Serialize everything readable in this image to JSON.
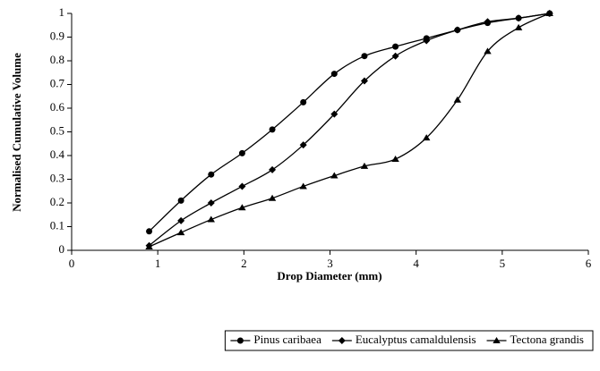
{
  "chart_data": {
    "type": "line",
    "x_label": "Drop Diameter (mm)",
    "y_label": "Normalised Cumulative Volume",
    "xlim": [
      0,
      6
    ],
    "xticks": [
      0,
      1,
      2,
      3,
      4,
      5,
      6
    ],
    "ylim": [
      0,
      1
    ],
    "yticks": [
      0,
      0.1,
      0.2,
      0.3,
      0.4,
      0.5,
      0.6,
      0.7,
      0.8,
      0.9,
      1
    ],
    "smooth": true,
    "legend": "bottom",
    "x": [
      0.9,
      1.27,
      1.62,
      1.98,
      2.33,
      2.69,
      3.05,
      3.4,
      3.76,
      4.12,
      4.48,
      4.83,
      5.19,
      5.55
    ],
    "series": [
      {
        "name": "Pinus caribaea",
        "color": "#000000",
        "marker": "circle",
        "values": [
          0.08,
          0.21,
          0.32,
          0.41,
          0.51,
          0.625,
          0.745,
          0.82,
          0.86,
          0.895,
          0.93,
          0.96,
          0.98,
          1.0
        ]
      },
      {
        "name": "Eucalyptus camaldulensis",
        "color": "#000000",
        "marker": "diamond",
        "values": [
          0.02,
          0.125,
          0.2,
          0.27,
          0.34,
          0.445,
          0.575,
          0.715,
          0.82,
          0.885,
          0.93,
          0.965,
          0.98,
          1.0
        ]
      },
      {
        "name": "Tectona grandis",
        "color": "#000000",
        "marker": "triangle",
        "values": [
          0.015,
          0.075,
          0.13,
          0.18,
          0.22,
          0.27,
          0.315,
          0.355,
          0.385,
          0.475,
          0.635,
          0.84,
          0.94,
          1.0
        ]
      }
    ]
  }
}
